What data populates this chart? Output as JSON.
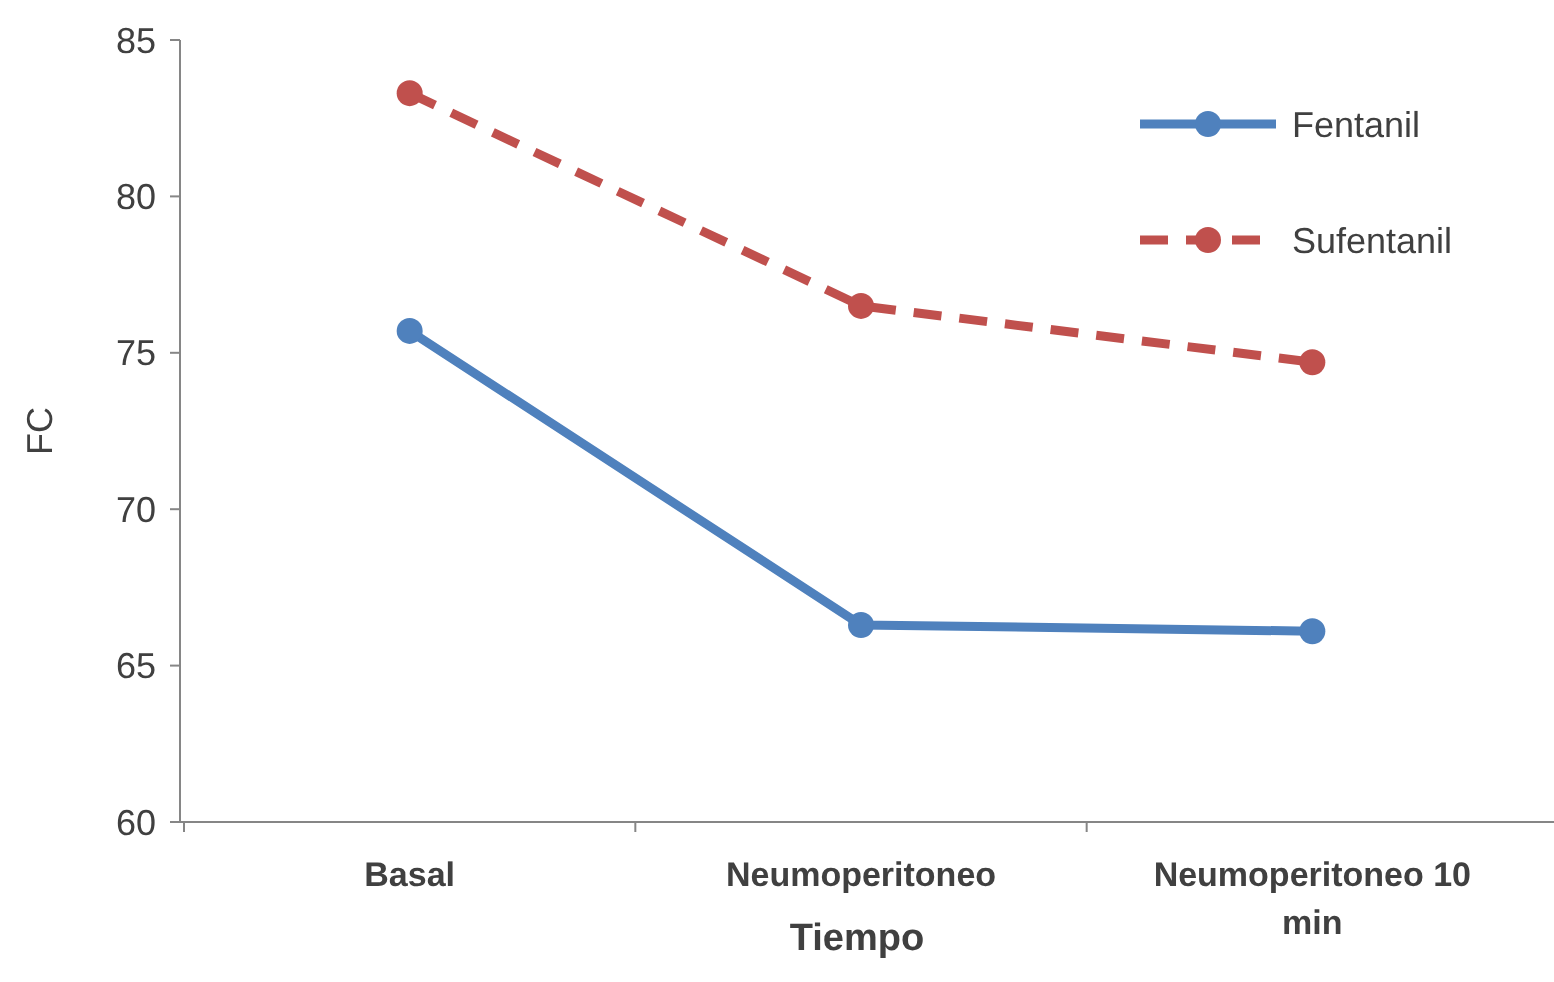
{
  "chart_data": {
    "type": "line",
    "xlabel": "Tiempo",
    "ylabel": "FC",
    "categories": [
      "Basal",
      "Neumoperitoneo",
      "Neumoperitoneo 10 min"
    ],
    "series": [
      {
        "name": "Fentanil",
        "color": "#4f81bd",
        "values": [
          75.7,
          66.3,
          66.1
        ],
        "line_style": "solid"
      },
      {
        "name": "Sufentanil",
        "color": "#c0504d",
        "values": [
          83.3,
          76.5,
          74.7
        ],
        "line_style": "dashed"
      }
    ],
    "ylim": [
      60,
      85
    ],
    "yticks": [
      60,
      65,
      70,
      75,
      80,
      85
    ],
    "grid": false,
    "legend": "top right",
    "marker": "circle"
  }
}
